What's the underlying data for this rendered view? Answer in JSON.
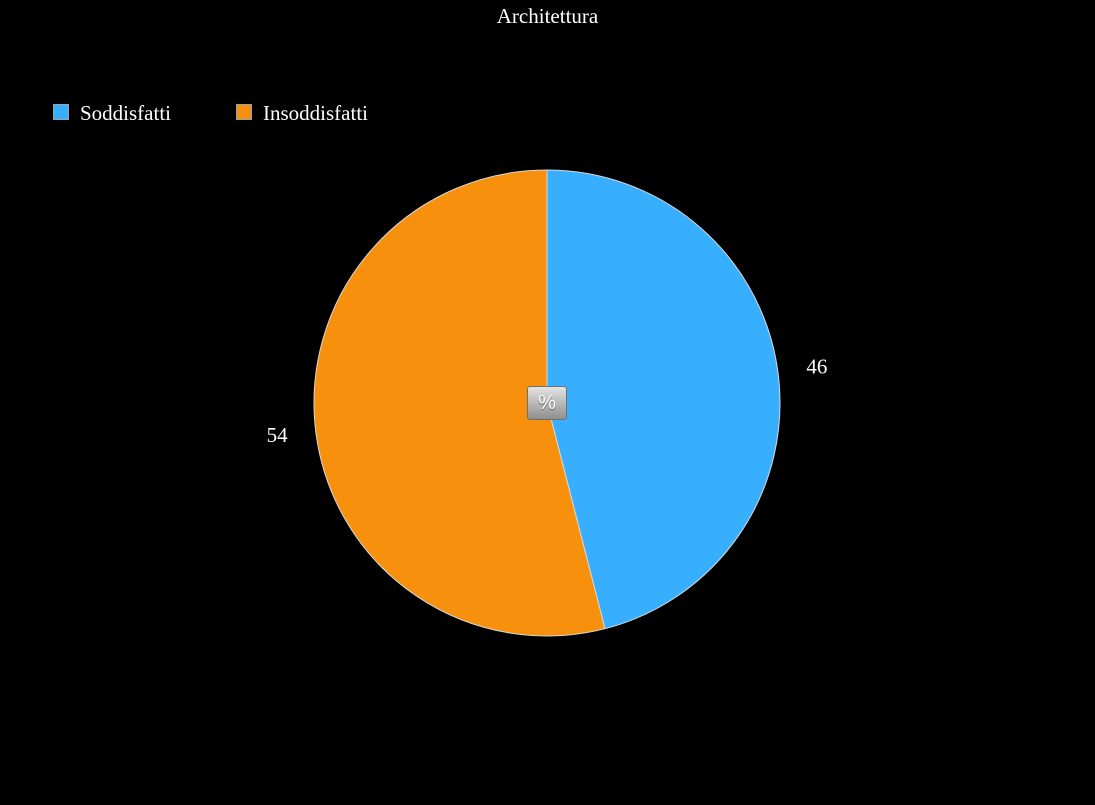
{
  "chart_data": {
    "type": "pie",
    "title": "Architettura",
    "legend_position": "top-left",
    "unit_toggle_label": "%",
    "slices": [
      {
        "name": "Soddisfatti",
        "value": 46,
        "label": "46",
        "color": "#38aeff"
      },
      {
        "name": "Insoddisfatti",
        "value": 54,
        "label": "54",
        "color": "#f7910d"
      }
    ]
  }
}
